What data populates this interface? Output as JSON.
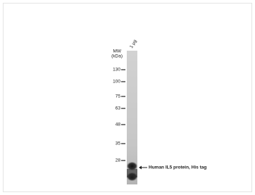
{
  "blot": {
    "lane_label": "1 μg",
    "mw_header": [
      "MW",
      "(kDa)"
    ],
    "markers": [
      "130",
      "100",
      "75",
      "63",
      "48",
      "35",
      "28"
    ],
    "band_label": "Human IL5 protein, His tag"
  }
}
